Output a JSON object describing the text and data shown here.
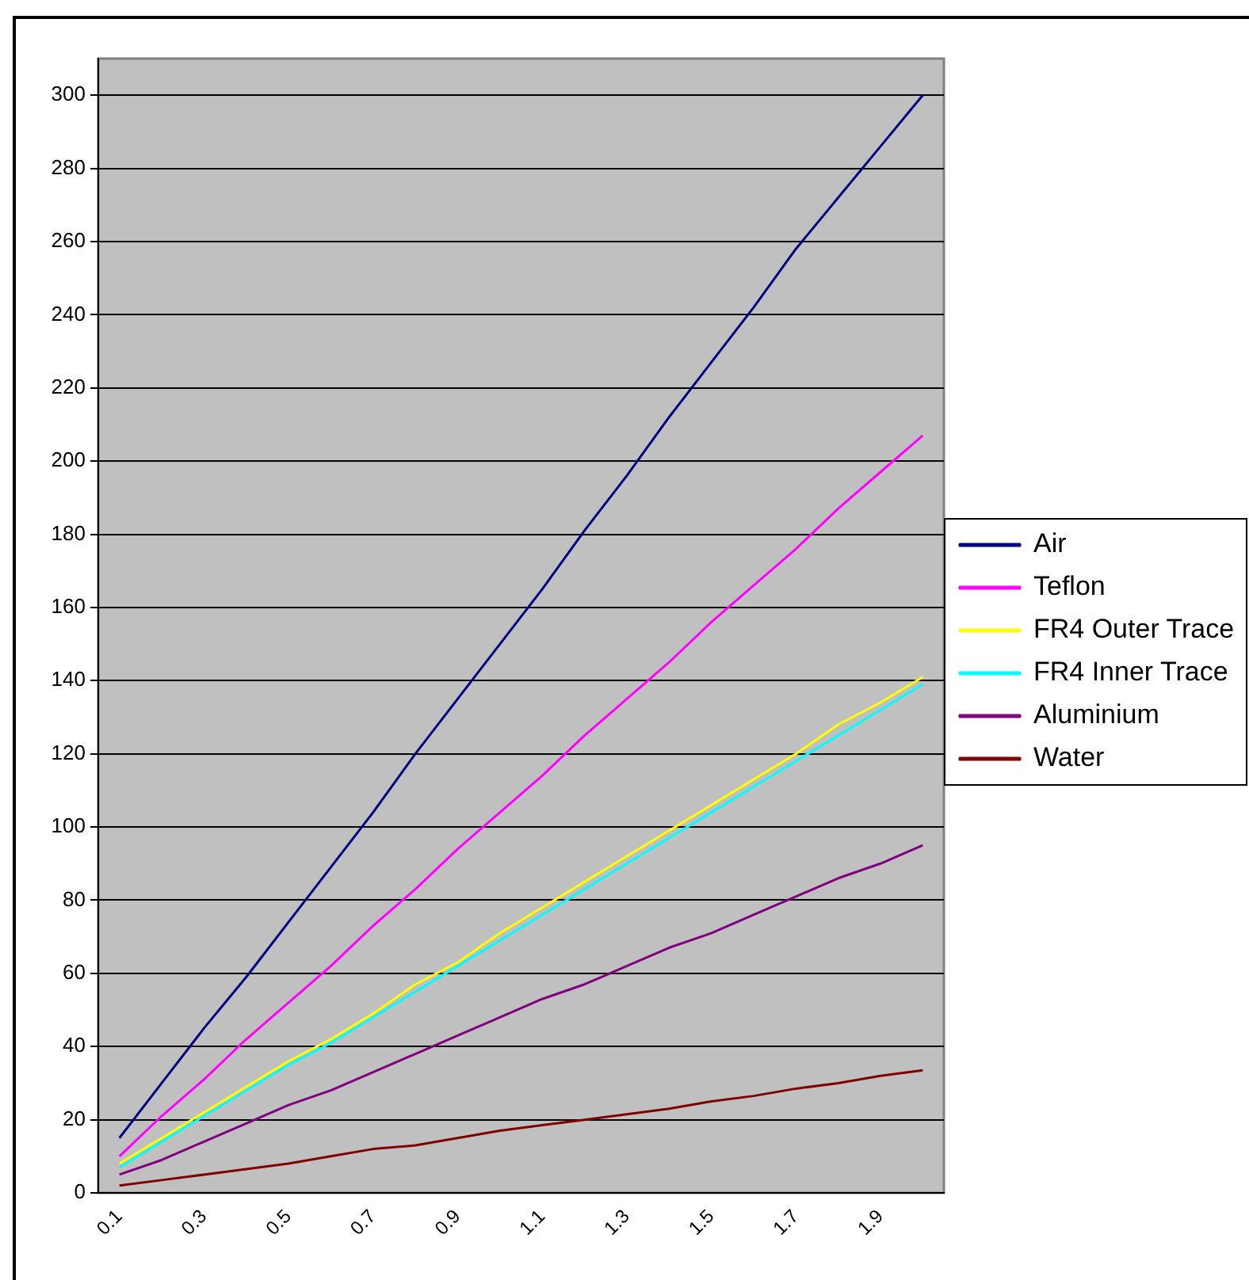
{
  "chart_data": {
    "type": "line",
    "categories": [
      "0.1",
      null,
      "0.3",
      null,
      "0.5",
      null,
      "0.7",
      null,
      "0.9",
      null,
      "1.1",
      null,
      "1.3",
      null,
      "1.5",
      null,
      "1.7",
      null,
      "1.9",
      null
    ],
    "series": [
      {
        "name": "Air",
        "color": "#000080",
        "values": [
          15,
          30,
          45,
          59,
          74,
          89,
          104,
          120,
          135,
          150,
          165,
          181,
          196,
          212,
          227,
          242,
          258,
          272,
          286,
          300
        ]
      },
      {
        "name": "Teflon",
        "color": "#ff00ff",
        "values": [
          10,
          21,
          31,
          42,
          52,
          62,
          73,
          83,
          94,
          104,
          114,
          125,
          135,
          145,
          156,
          166,
          176,
          187,
          197,
          207
        ]
      },
      {
        "name": "FR4 Outer Trace",
        "color": "#ffff00",
        "values": [
          8,
          15,
          22,
          29,
          36,
          42,
          49,
          57,
          63,
          71,
          78,
          85,
          92,
          99,
          106,
          113,
          120,
          128,
          134,
          141
        ]
      },
      {
        "name": "FR4 Inner Trace",
        "color": "#00ffff",
        "values": [
          7,
          14,
          21,
          28,
          35,
          41,
          48,
          55,
          62,
          69,
          76,
          83,
          90,
          97,
          104,
          111,
          118,
          125,
          132,
          139
        ]
      },
      {
        "name": "Aluminium",
        "color": "#800080",
        "values": [
          5,
          9,
          14,
          19,
          24,
          28,
          33,
          38,
          43,
          48,
          53,
          57,
          62,
          67,
          71,
          76,
          81,
          86,
          90,
          95
        ]
      },
      {
        "name": "Water",
        "color": "#800000",
        "values": [
          2,
          3.5,
          5,
          6.5,
          8,
          10,
          12,
          13,
          15,
          17,
          18.5,
          20,
          21.5,
          23,
          25,
          26.5,
          28.5,
          30,
          32,
          33.5
        ]
      }
    ],
    "ylim": [
      0,
      310
    ],
    "yticks": [
      0,
      20,
      40,
      60,
      80,
      100,
      120,
      140,
      160,
      180,
      200,
      220,
      240,
      260,
      280,
      300
    ],
    "grid": "y",
    "legend": "right",
    "marker": "none",
    "line_style": "solid"
  }
}
